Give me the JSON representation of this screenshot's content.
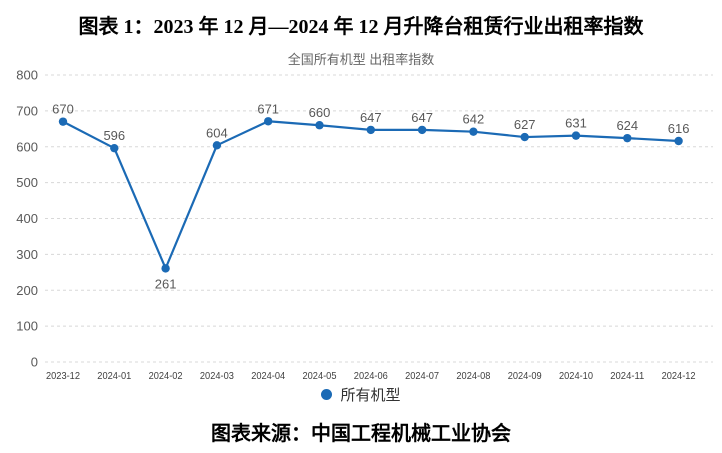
{
  "figure": {
    "title": "图表 1：2023 年 12 月—2024 年 12 月升降台租赁行业出租率指数",
    "source_caption": "图表来源：中国工程机械工业协会"
  },
  "chart_data": {
    "type": "line",
    "title": "全国所有机型 出租率指数",
    "categories": [
      "2023-12",
      "2024-01",
      "2024-02",
      "2024-03",
      "2024-04",
      "2024-05",
      "2024-06",
      "2024-07",
      "2024-08",
      "2024-09",
      "2024-10",
      "2024-11",
      "2024-12"
    ],
    "series": [
      {
        "name": "所有机型",
        "values": [
          670,
          596,
          261,
          604,
          671,
          660,
          647,
          647,
          642,
          627,
          631,
          624,
          616
        ]
      }
    ],
    "ylim": [
      0,
      800
    ],
    "yticks": [
      0,
      100,
      200,
      300,
      400,
      500,
      600,
      700,
      800
    ],
    "grid": "horizontal-dashed",
    "legend_position": "bottom",
    "data_labels": "shown, min value labeled below point",
    "colors": {
      "line": "#1b6ab5",
      "point": "#1b6ab5",
      "value_label": "#595959",
      "y_tick_label": "#595959",
      "x_tick_label": "#3f3f3f",
      "gridline": "#d8d8d8",
      "subtitle": "#666666",
      "title": "#000000"
    }
  }
}
